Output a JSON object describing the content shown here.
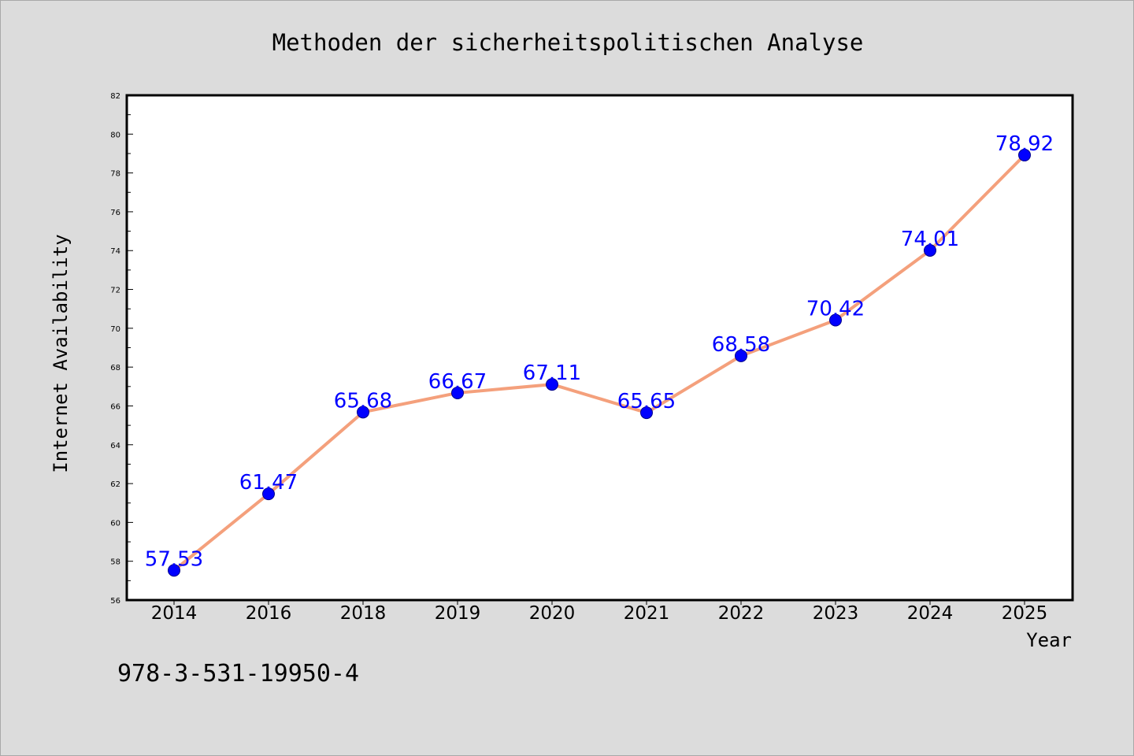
{
  "chart_data": {
    "type": "line",
    "title": "Methoden der sicherheitspolitischen Analyse",
    "xlabel": "Year",
    "ylabel": "Internet Availability",
    "categories": [
      "2014",
      "2016",
      "2018",
      "2019",
      "2020",
      "2021",
      "2022",
      "2023",
      "2024",
      "2025"
    ],
    "series": [
      {
        "values": [
          57.53,
          61.47,
          65.68,
          66.67,
          67.11,
          65.65,
          68.58,
          70.42,
          74.01,
          78.92
        ],
        "data_labels": [
          "57.53",
          "61.47",
          "65.68",
          "66.67",
          "67.11",
          "65.65",
          "68.58",
          "70.42",
          "74.01",
          "78.92"
        ]
      }
    ],
    "ylim": [
      56,
      82
    ],
    "yticks": [
      "56",
      "58",
      "60",
      "62",
      "64",
      "66",
      "68",
      "70",
      "72",
      "74",
      "76",
      "78",
      "80",
      "82"
    ],
    "grid": false,
    "colors": {
      "line": "#f4a07c",
      "marker": "#0000ff",
      "data_label": "#0000ff",
      "plot_background": "#ffffff",
      "figure_background": "#dcdcdc"
    }
  },
  "footer": {
    "isbn": "978-3-531-19950-4"
  }
}
